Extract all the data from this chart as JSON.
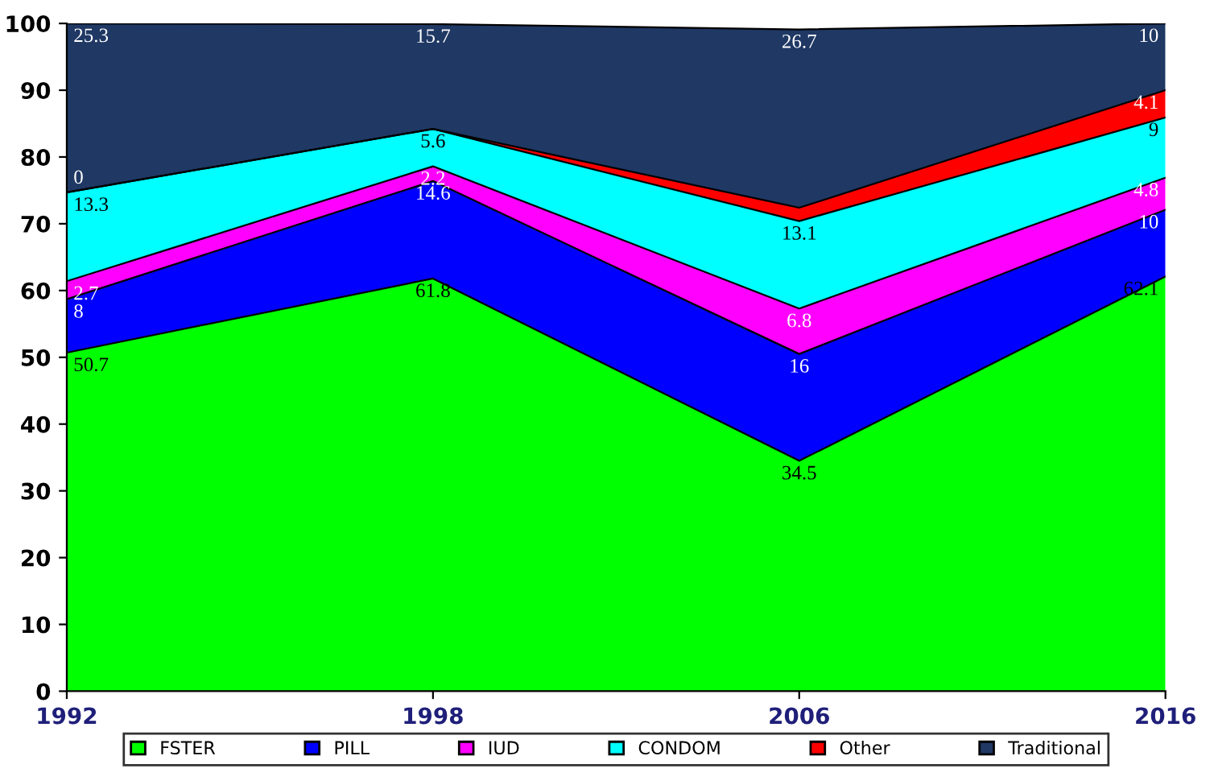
{
  "chart_data": {
    "type": "area",
    "stacked": true,
    "categories": [
      "1992",
      "1998",
      "2006",
      "2016"
    ],
    "series": [
      {
        "name": "FSTER",
        "color": "#00ff00",
        "values": [
          50.7,
          61.8,
          34.5,
          62.1
        ]
      },
      {
        "name": "PILL",
        "color": "#0000ff",
        "values": [
          8,
          14.6,
          16,
          10
        ]
      },
      {
        "name": "IUD",
        "color": "#ff00ff",
        "values": [
          2.7,
          2.2,
          6.8,
          4.8
        ]
      },
      {
        "name": "CONDOM",
        "color": "#00ffff",
        "values": [
          13.3,
          5.6,
          13.1,
          9
        ]
      },
      {
        "name": "Other",
        "color": "#ff0000",
        "values": [
          0,
          0,
          2,
          4.1
        ],
        "value_labels": [
          "0",
          null,
          null,
          "4.1"
        ]
      },
      {
        "name": "Traditional",
        "color": "#1f3864",
        "values": [
          25.3,
          15.7,
          26.7,
          10
        ]
      }
    ],
    "ylim": [
      0,
      100
    ],
    "yticks": [
      0,
      10,
      20,
      30,
      40,
      50,
      60,
      70,
      80,
      90,
      100
    ],
    "data_labels": true,
    "legend": "bottom",
    "grid": false
  }
}
